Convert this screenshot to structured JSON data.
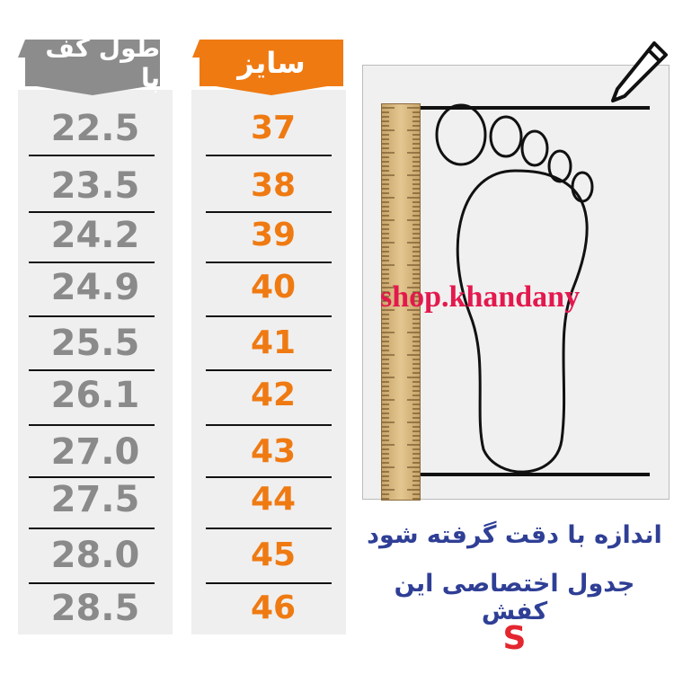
{
  "foot_length": {
    "header": "طول کف پا",
    "values": [
      "22.5",
      "23.5",
      "24.2",
      "24.9",
      "25.5",
      "26.1",
      "27.0",
      "27.5",
      "28.0",
      "28.5"
    ]
  },
  "size": {
    "header": "سایز",
    "values": [
      "37",
      "38",
      "39",
      "40",
      "41",
      "42",
      "43",
      "44",
      "45",
      "46"
    ]
  },
  "watermark": "shop.khandany",
  "note_line1": "اندازه با دقت گرفته شود",
  "note_line2": "جدول اختصاصی این کفش",
  "size_code": "S",
  "colors": {
    "orange": "#ef7a12",
    "gray": "#8c8c8c",
    "navy": "#2f3f96",
    "red": "#e3194e"
  }
}
